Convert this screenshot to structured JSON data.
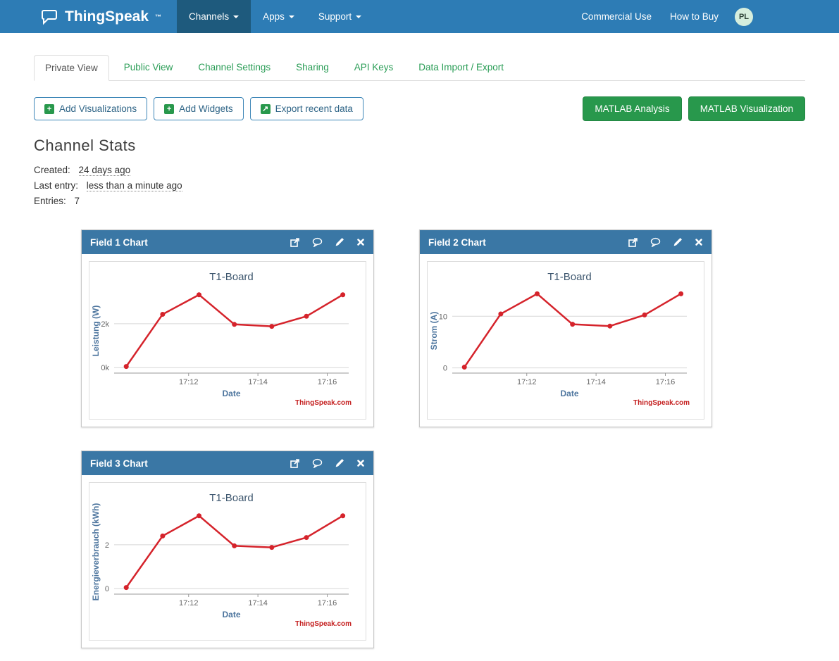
{
  "navbar": {
    "brand": "ThingSpeak",
    "brand_tm": "™",
    "brand_icon": "speech-bubble-icon",
    "items": [
      {
        "label": "Channels",
        "active": true,
        "icon": "caret-down-icon"
      },
      {
        "label": "Apps",
        "active": false,
        "icon": "caret-down-icon"
      },
      {
        "label": "Support",
        "active": false,
        "icon": "caret-down-icon"
      }
    ],
    "right_items": [
      {
        "label": "Commercial Use"
      },
      {
        "label": "How to Buy"
      }
    ],
    "avatar_initials": "PL"
  },
  "tabs": [
    {
      "label": "Private View",
      "active": true
    },
    {
      "label": "Public View",
      "active": false
    },
    {
      "label": "Channel Settings",
      "active": false
    },
    {
      "label": "Sharing",
      "active": false
    },
    {
      "label": "API Keys",
      "active": false
    },
    {
      "label": "Data Import / Export",
      "active": false
    }
  ],
  "toolbar": {
    "add_visualizations": {
      "label": "Add Visualizations",
      "icon": "plus-square-icon",
      "icon_glyph": "+"
    },
    "add_widgets": {
      "label": "Add Widgets",
      "icon": "plus-square-icon",
      "icon_glyph": "+"
    },
    "export_recent_data": {
      "label": "Export recent data",
      "icon": "export-square-icon",
      "icon_glyph": "↗"
    },
    "matlab_analysis": "MATLAB Analysis",
    "matlab_visualization": "MATLAB Visualization"
  },
  "stats": {
    "title": "Channel Stats",
    "created_label": "Created:",
    "created_value": "24 days ago",
    "last_entry_label": "Last entry:",
    "last_entry_value": "less than a minute ago",
    "entries_label": "Entries:",
    "entries_value": "7"
  },
  "panel_icon_names": [
    "open-external-icon",
    "comment-icon",
    "edit-icon",
    "close-icon"
  ],
  "colors": {
    "navbar_blue": "#2d7cb5",
    "navbar_active_blue": "#1e5a7d",
    "panel_header_blue": "#3a77a5",
    "button_green": "#28984c",
    "link_green": "#2a9d56",
    "outline_button_border": "#3f87b8",
    "chart_line_red": "#d5232b",
    "credit_red": "#c41f1f"
  },
  "chart_data": [
    {
      "type": "line",
      "panel_title": "Field 1 Chart",
      "title": "T1-Board",
      "xlabel": "Date",
      "ylabel": "Leistung (W)",
      "credit": "ThingSpeak.com",
      "line_color": "#d5232b",
      "x": [
        10.2,
        11.25,
        12.3,
        13.32,
        14.4,
        15.4,
        16.45
      ],
      "y": [
        0.05,
        2.43,
        3.32,
        1.97,
        1.88,
        2.34,
        3.32
      ],
      "xlim": [
        9.85,
        16.62
      ],
      "ylim": [
        -0.25,
        3.6
      ],
      "x_ticks": [
        {
          "v": 12,
          "label": "17:12"
        },
        {
          "v": 14,
          "label": "17:14"
        },
        {
          "v": 16,
          "label": "17:16"
        }
      ],
      "y_ticks": [
        {
          "v": 0,
          "label": "0k"
        },
        {
          "v": 2,
          "label": "2k"
        }
      ],
      "grid": true,
      "legend": "none"
    },
    {
      "type": "line",
      "panel_title": "Field 2 Chart",
      "title": "T1-Board",
      "xlabel": "Date",
      "ylabel": "Strom (A)",
      "credit": "ThingSpeak.com",
      "line_color": "#d5232b",
      "x": [
        10.2,
        11.25,
        12.3,
        13.32,
        14.4,
        15.4,
        16.45
      ],
      "y": [
        0.15,
        10.45,
        14.35,
        8.45,
        8.1,
        10.25,
        14.35
      ],
      "xlim": [
        9.85,
        16.62
      ],
      "ylim": [
        -1.0,
        15.35
      ],
      "x_ticks": [
        {
          "v": 12,
          "label": "17:12"
        },
        {
          "v": 14,
          "label": "17:14"
        },
        {
          "v": 16,
          "label": "17:16"
        }
      ],
      "y_ticks": [
        {
          "v": 0,
          "label": "0"
        },
        {
          "v": 10,
          "label": "10"
        }
      ],
      "grid": true,
      "legend": "none"
    },
    {
      "type": "line",
      "panel_title": "Field 3 Chart",
      "title": "T1-Board",
      "xlabel": "Date",
      "ylabel": "Energieverbrauch (kWh)",
      "credit": "ThingSpeak.com",
      "line_color": "#d5232b",
      "x": [
        10.2,
        11.25,
        12.3,
        13.32,
        14.4,
        15.4,
        16.45
      ],
      "y": [
        0.05,
        2.4,
        3.32,
        1.95,
        1.88,
        2.33,
        3.32
      ],
      "xlim": [
        9.85,
        16.62
      ],
      "ylim": [
        -0.25,
        3.6
      ],
      "x_ticks": [
        {
          "v": 12,
          "label": "17:12"
        },
        {
          "v": 14,
          "label": "17:14"
        },
        {
          "v": 16,
          "label": "17:16"
        }
      ],
      "y_ticks": [
        {
          "v": 0,
          "label": "0"
        },
        {
          "v": 2,
          "label": "2"
        }
      ],
      "grid": true,
      "legend": "none"
    }
  ]
}
